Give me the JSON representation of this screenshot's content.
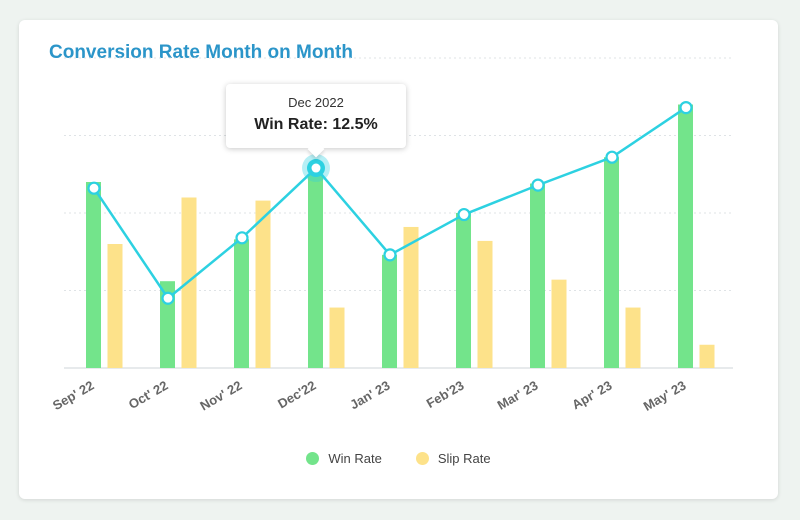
{
  "title": "Conversion Rate Month on Month",
  "colors": {
    "win": "#73e48b",
    "slip": "#fde28a",
    "line": "#2dd1e1",
    "title": "#2b95c9"
  },
  "tooltip": {
    "month": "Dec 2022",
    "value": "Win Rate: 12.5%"
  },
  "legend": {
    "win": "Win Rate",
    "slip": "Slip Rate"
  },
  "chart_data": {
    "type": "bar",
    "categories": [
      "Sep' 22",
      "Oct' 22",
      "Nov' 22",
      "Dec'22",
      "Jan' 23",
      "Feb'23",
      "Mar' 23",
      "Apr' 23",
      "May' 23"
    ],
    "series": [
      {
        "name": "Win Rate",
        "type": "bar",
        "values": [
          12.0,
          5.6,
          8.3,
          12.5,
          7.3,
          10.0,
          11.9,
          13.6,
          17.0
        ]
      },
      {
        "name": "Slip Rate",
        "type": "bar",
        "values": [
          8.0,
          11.0,
          10.8,
          3.9,
          9.1,
          8.2,
          5.7,
          3.9,
          1.5
        ]
      },
      {
        "name": "Win Rate",
        "type": "line",
        "values": [
          11.6,
          4.5,
          8.4,
          12.9,
          7.3,
          9.9,
          11.8,
          13.6,
          16.8
        ]
      }
    ],
    "ylim": [
      0,
      20
    ],
    "grid": true,
    "legend_position": "bottom",
    "highlighted_point": {
      "category": "Dec'22",
      "label": "Win Rate: 12.5%"
    }
  }
}
